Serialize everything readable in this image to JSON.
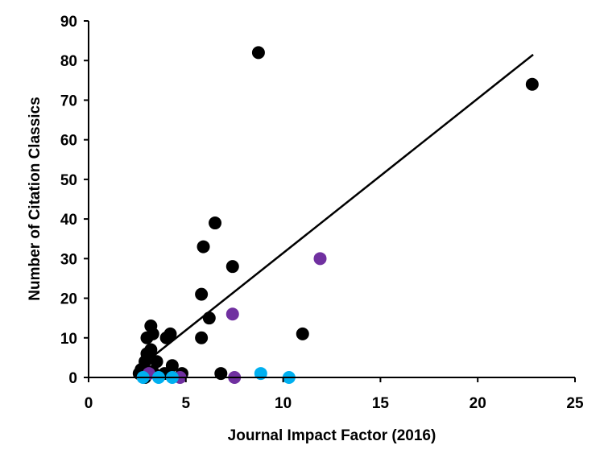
{
  "chart_data": {
    "type": "scatter",
    "xlabel": "Journal Impact Factor (2016)",
    "ylabel": "Number of Citation Classics",
    "xlim": [
      0,
      25
    ],
    "ylim": [
      0,
      90
    ],
    "xticks": [
      0,
      5,
      10,
      15,
      20,
      25
    ],
    "yticks": [
      0,
      10,
      20,
      30,
      40,
      50,
      60,
      70,
      80,
      90
    ],
    "grid": false,
    "series": [
      {
        "color": "#000000",
        "points": [
          [
            8.73,
            82
          ],
          [
            22.8,
            74
          ],
          [
            6.5,
            39
          ],
          [
            5.9,
            33
          ],
          [
            7.4,
            28
          ],
          [
            5.8,
            21
          ],
          [
            6.2,
            15
          ],
          [
            5.8,
            10
          ],
          [
            11.0,
            11
          ],
          [
            6.8,
            1
          ],
          [
            3.2,
            13
          ],
          [
            3.3,
            11
          ],
          [
            3.0,
            10
          ],
          [
            4.2,
            11
          ],
          [
            4.0,
            10
          ],
          [
            3.0,
            6
          ],
          [
            3.2,
            7
          ],
          [
            3.5,
            4
          ],
          [
            2.9,
            4
          ],
          [
            2.7,
            2
          ],
          [
            4.3,
            3
          ],
          [
            2.6,
            1
          ],
          [
            4.8,
            1
          ],
          [
            3.9,
            1
          ],
          [
            3.3,
            1.5
          ],
          [
            2.9,
            0
          ]
        ]
      },
      {
        "color": "#7030a0",
        "points": [
          [
            11.9,
            30
          ],
          [
            7.4,
            16
          ],
          [
            7.5,
            0
          ],
          [
            3.1,
            1
          ],
          [
            4.7,
            0
          ]
        ]
      },
      {
        "color": "#00b0f0",
        "points": [
          [
            8.85,
            1
          ],
          [
            10.3,
            0
          ],
          [
            2.8,
            0
          ],
          [
            3.6,
            0
          ],
          [
            4.3,
            0
          ]
        ]
      }
    ],
    "trendline": {
      "color": "#000000",
      "from": [
        3.2,
        4.9
      ],
      "to": [
        22.85,
        81.5
      ]
    }
  }
}
